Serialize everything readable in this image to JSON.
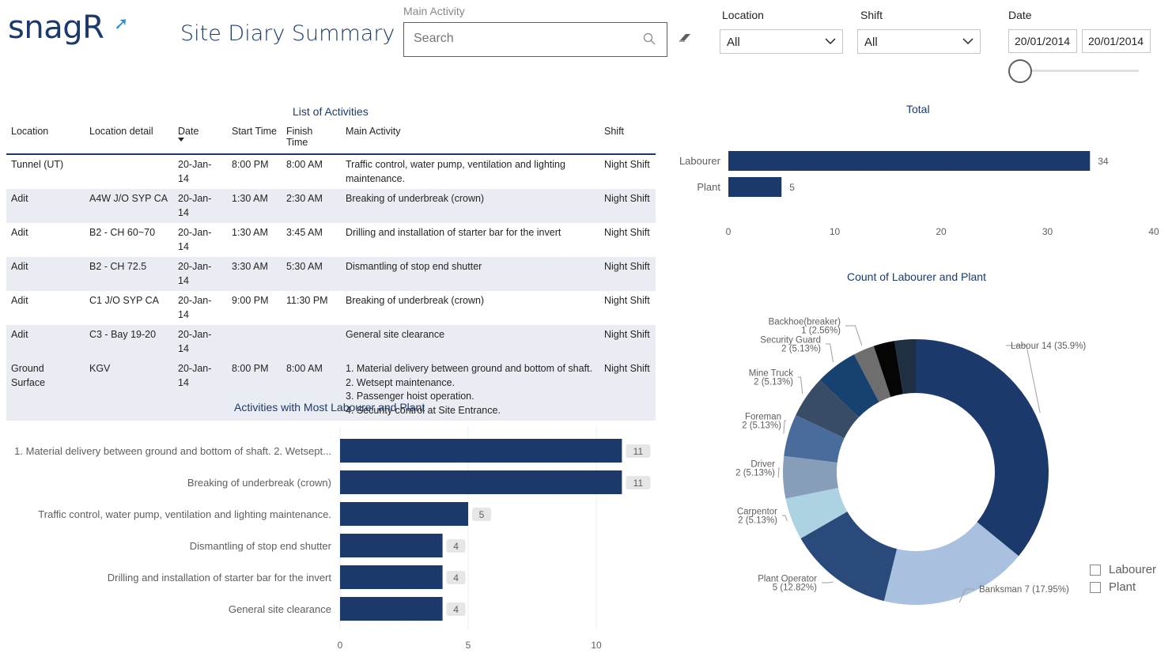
{
  "header": {
    "logo": "snagR",
    "title": "Site Diary Summary"
  },
  "slicers": {
    "main_activity_label": "Main Activity",
    "search_placeholder": "Search",
    "location_label": "Location",
    "location_value": "All",
    "shift_label": "Shift",
    "shift_value": "All",
    "date_label": "Date",
    "date_start": "20/01/2014",
    "date_end": "20/01/2014"
  },
  "activities_table": {
    "title": "List of Activities",
    "columns": [
      "Location",
      "Location detail",
      "Date",
      "Start Time",
      "Finish Time",
      "Main Activity",
      "Shift"
    ],
    "rows": [
      [
        "Tunnel (UT)",
        "",
        "20-Jan-14",
        "8:00 PM",
        "8:00 AM",
        "Traffic control, water pump, ventilation and lighting maintenance.",
        "Night Shift"
      ],
      [
        "Adit",
        "A4W J/O SYP CA",
        "20-Jan-14",
        "1:30 AM",
        "2:30 AM",
        "Breaking of underbreak (crown)",
        "Night Shift"
      ],
      [
        "Adit",
        "B2 - CH 60~70",
        "20-Jan-14",
        "1:30 AM",
        "3:45 AM",
        "Drilling and installation of starter bar for the invert",
        "Night Shift"
      ],
      [
        "Adit",
        "B2 - CH 72.5",
        "20-Jan-14",
        "3:30 AM",
        "5:30 AM",
        "Dismantling of stop end shutter",
        "Night Shift"
      ],
      [
        "Adit",
        "C1 J/O SYP CA",
        "20-Jan-14",
        "9:00 PM",
        "11:30 PM",
        "Breaking of underbreak (crown)",
        "Night Shift"
      ],
      [
        "Adit",
        "C3 - Bay 19-20",
        "20-Jan-14",
        "",
        "",
        "General site clearance",
        "Night Shift"
      ],
      [
        "Ground Surface",
        "KGV",
        "20-Jan-14",
        "8:00 PM",
        "8:00 AM",
        "1. Material delivery between ground and bottom of shaft.\n2. Wetsept maintenance.\n3. Passenger hoist operation.\n4. Security control at Site Entrance.",
        "Night Shift"
      ]
    ]
  },
  "chart_data": [
    {
      "id": "total",
      "type": "bar",
      "orientation": "horizontal",
      "title": "Total",
      "categories": [
        "Labourer",
        "Plant"
      ],
      "values": [
        34,
        5
      ],
      "xlim": [
        0,
        40
      ],
      "ticks": [
        0,
        10,
        20,
        30,
        40
      ],
      "color": "#1b3a6b"
    },
    {
      "id": "activities",
      "type": "bar",
      "orientation": "horizontal",
      "title": "Activities with Most Labourer and Plant",
      "categories": [
        "1. Material delivery between ground and bottom of shaft. 2. Wetsept...",
        "Breaking of underbreak (crown)",
        "Traffic control, water pump, ventilation and lighting maintenance.",
        "Dismantling of stop end shutter",
        "Drilling and installation of starter bar for the invert",
        "General site clearance"
      ],
      "values": [
        11,
        11,
        5,
        4,
        4,
        4
      ],
      "xlim": [
        0,
        12.5
      ],
      "ticks": [
        0,
        5,
        10
      ],
      "color": "#1b3a6b"
    },
    {
      "id": "count",
      "type": "pie",
      "variant": "donut",
      "title": "Count of Labourer and Plant",
      "slices": [
        {
          "label": "Labour",
          "value": 14,
          "pct": "35.9%",
          "color": "#1b3a6b",
          "text": "Labour 14 (35.9%)"
        },
        {
          "label": "Banksman",
          "value": 7,
          "pct": "17.95%",
          "color": "#a9c1de",
          "text": "Banksman 7 (17.95%)"
        },
        {
          "label": "Plant Operator",
          "value": 5,
          "pct": "12.82%",
          "color": "#2a4a7b",
          "text": "Plant Operator\n5 (12.82%)"
        },
        {
          "label": "Carpentor",
          "value": 2,
          "pct": "5.13%",
          "color": "#add3e3",
          "text": "Carpentor\n2 (5.13%)"
        },
        {
          "label": "Driver",
          "value": 2,
          "pct": "5.13%",
          "color": "#879eba",
          "text": "Driver\n2 (5.13%)"
        },
        {
          "label": "Foreman",
          "value": 2,
          "pct": "5.13%",
          "color": "#4a6c9c",
          "text": "Foreman\n2 (5.13%)"
        },
        {
          "label": "Mine Truck",
          "value": 2,
          "pct": "5.13%",
          "color": "#394c65",
          "text": "Mine Truck\n2 (5.13%)"
        },
        {
          "label": "Security Guard",
          "value": 2,
          "pct": "5.13%",
          "color": "#17426f",
          "text": "Security Guard\n2 (5.13%)"
        },
        {
          "label": "Backhoe(breaker)",
          "value": 1,
          "pct": "2.56%",
          "color": "#6e6e6e",
          "text": "Backhoe(breaker)\n1 (2.56%)"
        },
        {
          "label": "",
          "value": 1,
          "pct": "",
          "color": "#050505",
          "text": ""
        },
        {
          "label": "",
          "value": 1,
          "pct": "",
          "color": "#1f2f44",
          "text": ""
        }
      ],
      "legend": [
        "Labourer",
        "Plant"
      ]
    }
  ]
}
